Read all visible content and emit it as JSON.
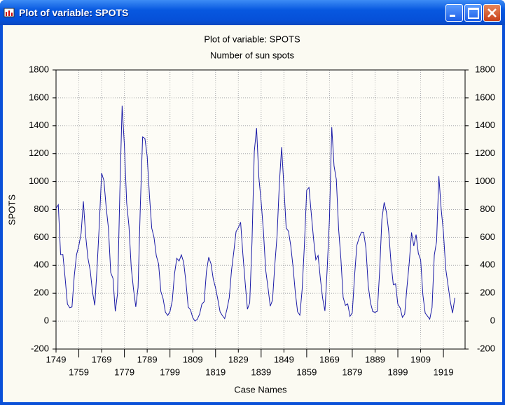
{
  "window": {
    "title": "Plot of variable: SPOTS"
  },
  "chart_data": {
    "type": "line",
    "title": "Plot of variable: SPOTS",
    "subtitle": "Number of sun spots",
    "xlabel": "Case Names",
    "ylabel": "SPOTS",
    "color": "#1a1aa6",
    "grid": true,
    "x": [
      1749,
      1750,
      1751,
      1752,
      1753,
      1754,
      1755,
      1756,
      1757,
      1758,
      1759,
      1760,
      1761,
      1762,
      1763,
      1764,
      1765,
      1766,
      1767,
      1768,
      1769,
      1770,
      1771,
      1772,
      1773,
      1774,
      1775,
      1776,
      1777,
      1778,
      1779,
      1780,
      1781,
      1782,
      1783,
      1784,
      1785,
      1786,
      1787,
      1788,
      1789,
      1790,
      1791,
      1792,
      1793,
      1794,
      1795,
      1796,
      1797,
      1798,
      1799,
      1800,
      1801,
      1802,
      1803,
      1804,
      1805,
      1806,
      1807,
      1808,
      1809,
      1810,
      1811,
      1812,
      1813,
      1814,
      1815,
      1816,
      1817,
      1818,
      1819,
      1820,
      1821,
      1822,
      1823,
      1824,
      1825,
      1826,
      1827,
      1828,
      1829,
      1830,
      1831,
      1832,
      1833,
      1834,
      1835,
      1836,
      1837,
      1838,
      1839,
      1840,
      1841,
      1842,
      1843,
      1844,
      1845,
      1846,
      1847,
      1848,
      1849,
      1850,
      1851,
      1852,
      1853,
      1854,
      1855,
      1856,
      1857,
      1858,
      1859,
      1860,
      1861,
      1862,
      1863,
      1864,
      1865,
      1866,
      1867,
      1868,
      1869,
      1870,
      1871,
      1872,
      1873,
      1874,
      1875,
      1876,
      1877,
      1878,
      1879,
      1880,
      1881,
      1882,
      1883,
      1884,
      1885,
      1886,
      1887,
      1888,
      1889,
      1890,
      1891,
      1892,
      1893,
      1894,
      1895,
      1896,
      1897,
      1898,
      1899,
      1900,
      1901,
      1902,
      1903,
      1904,
      1905,
      1906,
      1907,
      1908,
      1909,
      1910,
      1911,
      1912,
      1913,
      1914,
      1915,
      1916,
      1917,
      1918,
      1919,
      1920,
      1921,
      1922,
      1923,
      1924
    ],
    "values": [
      809,
      834,
      477,
      478,
      307,
      122,
      96,
      102,
      324,
      476,
      540,
      629,
      859,
      612,
      451,
      364,
      209,
      114,
      378,
      698,
      1061,
      1008,
      816,
      665,
      348,
      306,
      70,
      198,
      925,
      1544,
      1259,
      848,
      681,
      385,
      228,
      102,
      241,
      829,
      1320,
      1309,
      1181,
      899,
      666,
      600,
      469,
      410,
      213,
      160,
      64,
      41,
      68,
      145,
      340,
      450,
      431,
      475,
      422,
      281,
      101,
      81,
      25,
      0,
      14,
      50,
      122,
      139,
      354,
      458,
      411,
      301,
      239,
      156,
      66,
      40,
      18,
      85,
      166,
      363,
      496,
      642,
      670,
      709,
      478,
      275,
      85,
      132,
      569,
      1215,
      1383,
      1032,
      857,
      646,
      367,
      242,
      107,
      150,
      401,
      615,
      985,
      1247,
      963,
      666,
      645,
      541,
      390,
      206,
      67,
      43,
      227,
      548,
      938,
      958,
      772,
      591,
      440,
      470,
      305,
      163,
      73,
      376,
      740,
      1390,
      1112,
      1016,
      662,
      447,
      170,
      113,
      124,
      34,
      60,
      323,
      543,
      597,
      637,
      635,
      522,
      254,
      131,
      68,
      63,
      71,
      356,
      730,
      851,
      780,
      640,
      418,
      262,
      267,
      121,
      95,
      27,
      50,
      244,
      420,
      635,
      538,
      620,
      485,
      439,
      186,
      57,
      36,
      14,
      96,
      474,
      571,
      1039,
      806,
      636,
      376,
      261,
      142,
      58,
      167
    ],
    "xlim": [
      1749,
      1928.5
    ],
    "xticks": [
      1749,
      1759,
      1769,
      1779,
      1789,
      1799,
      1809,
      1819,
      1829,
      1839,
      1849,
      1859,
      1869,
      1879,
      1889,
      1899,
      1909,
      1919
    ],
    "ylim": [
      -200,
      1800
    ],
    "yticks": [
      -200,
      0,
      200,
      400,
      600,
      800,
      1000,
      1200,
      1400,
      1600,
      1800
    ],
    "y2lim": [
      -200,
      1800
    ],
    "y2ticks": [
      -200,
      0,
      200,
      400,
      600,
      800,
      1000,
      1200,
      1400,
      1600,
      1800
    ]
  }
}
